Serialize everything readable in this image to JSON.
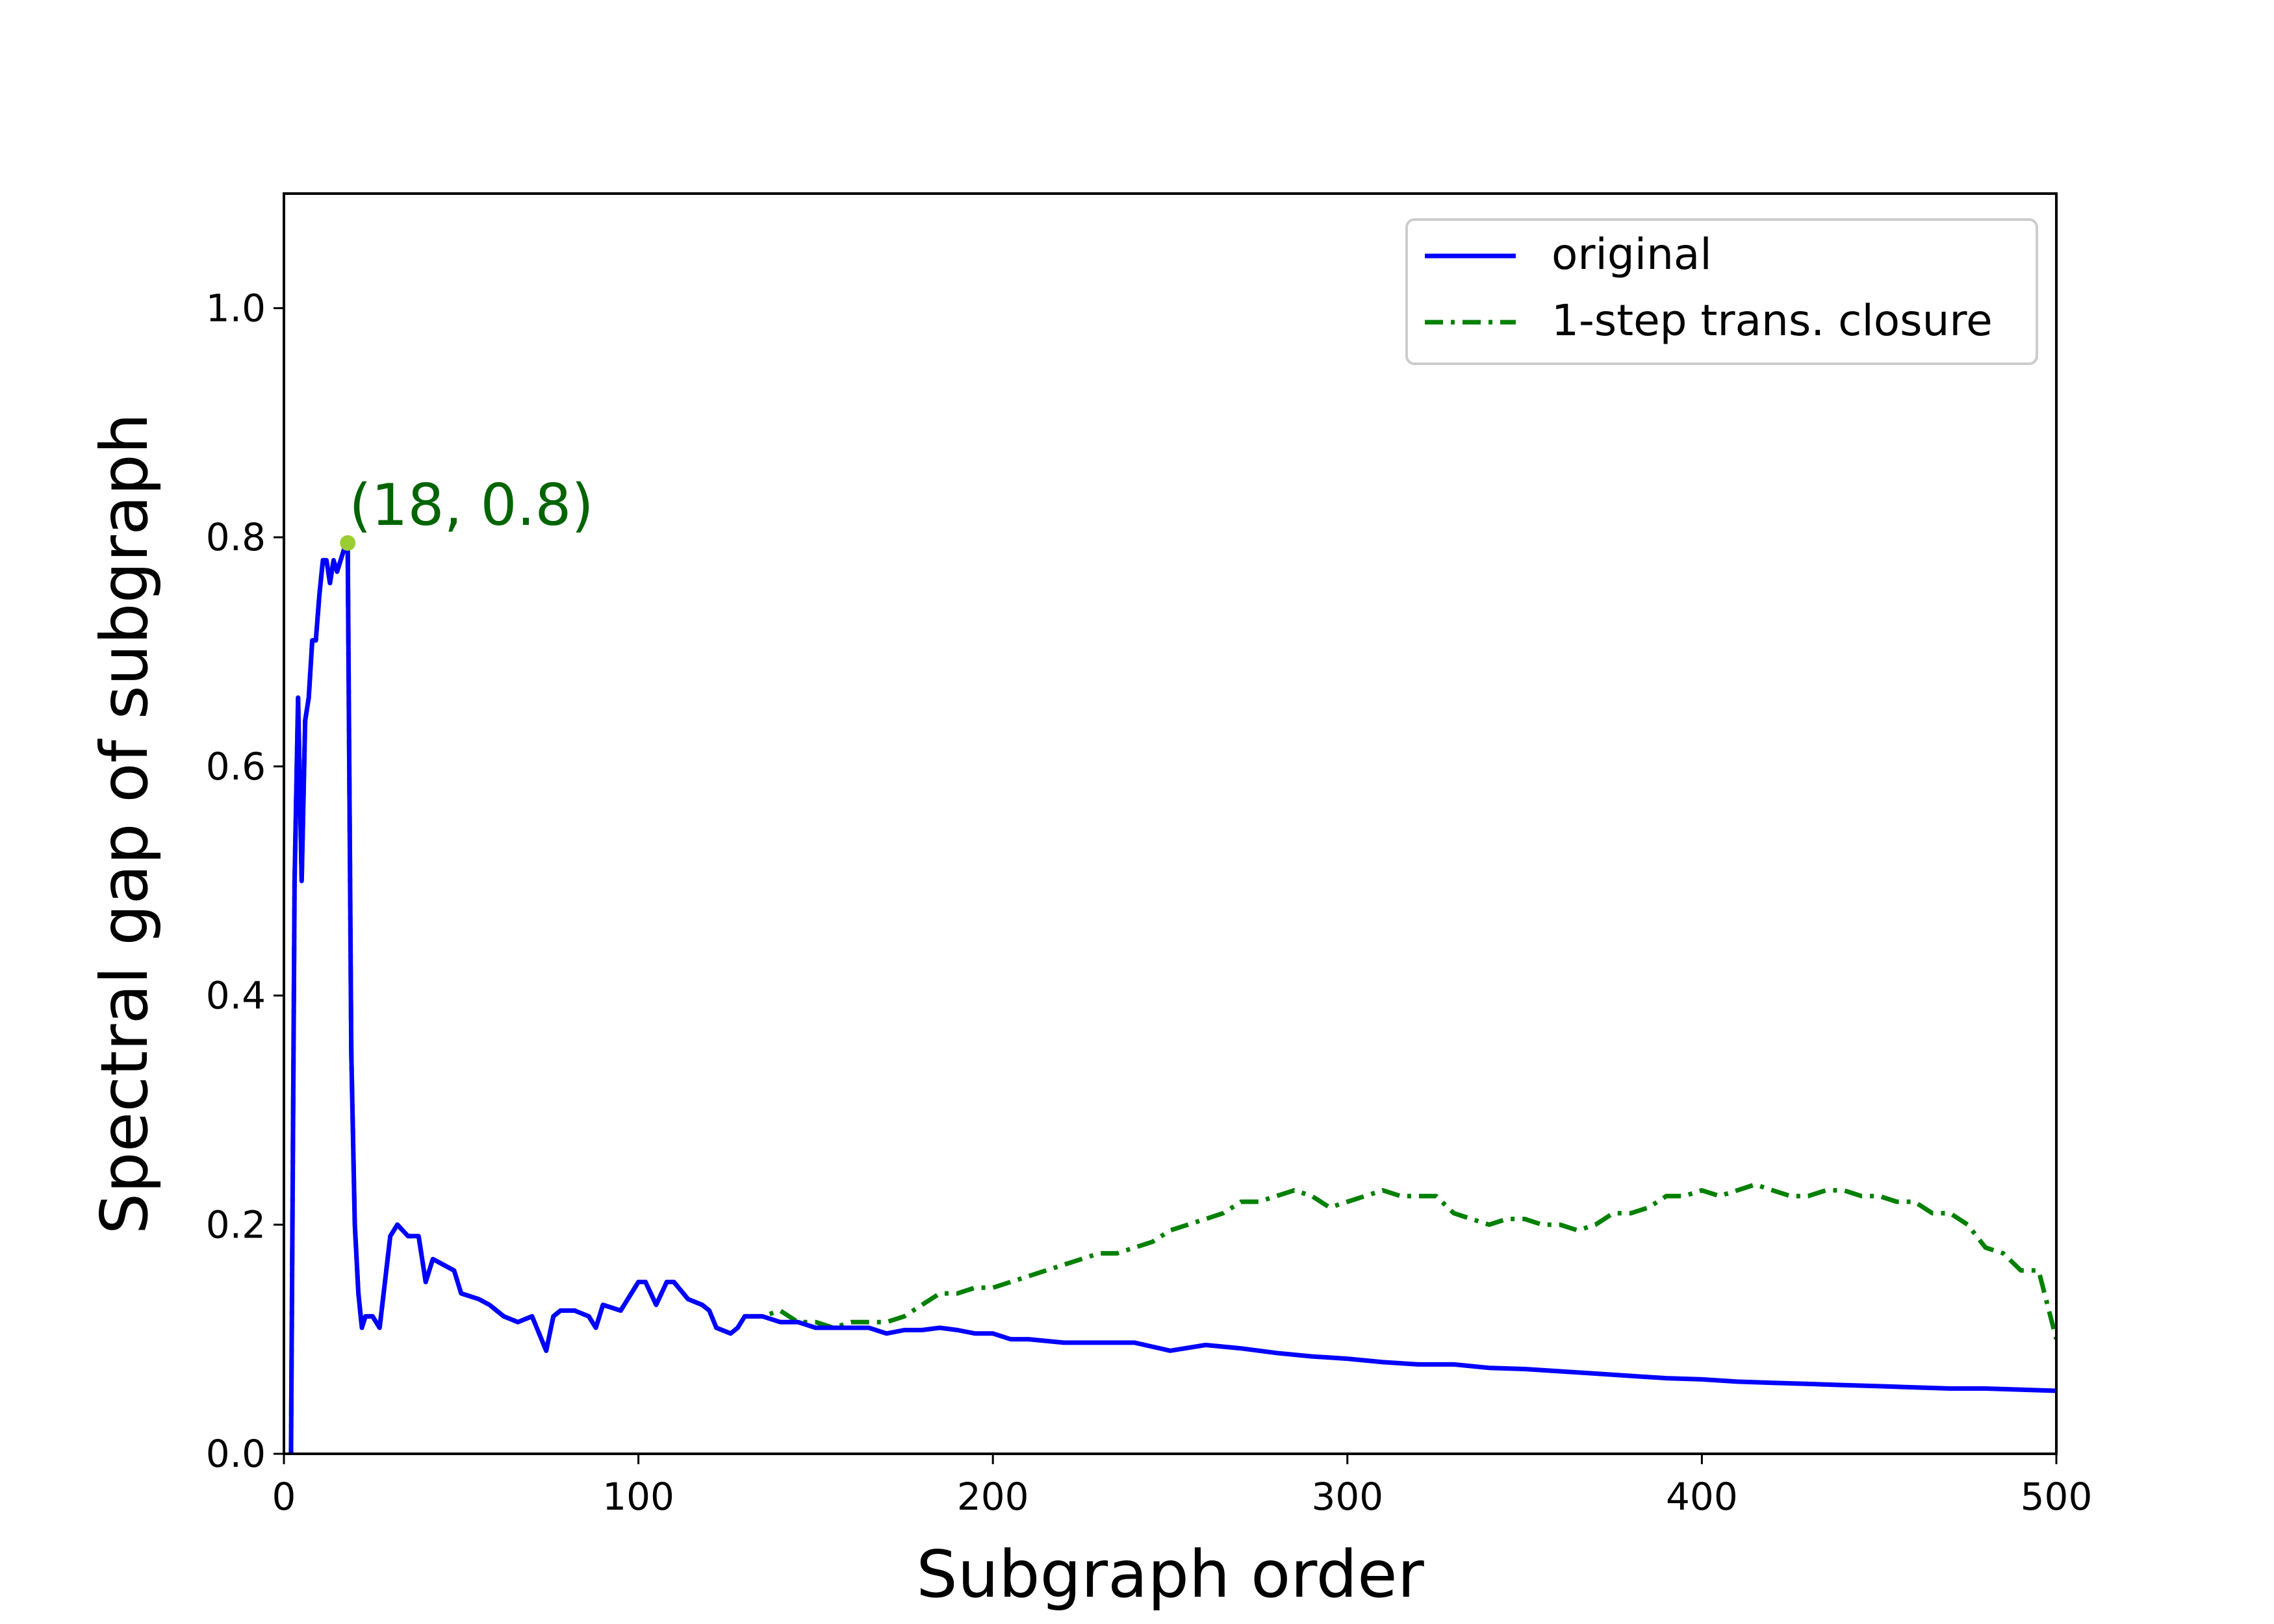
{
  "chart_data": {
    "type": "line",
    "title": "",
    "xlabel": "Subgraph order",
    "ylabel": "Spectral gap of subgraph",
    "xlim": [
      0,
      500
    ],
    "ylim": [
      0,
      1.1
    ],
    "xticks": [
      0,
      100,
      200,
      300,
      400,
      500
    ],
    "yticks": [
      0.0,
      0.2,
      0.4,
      0.6,
      0.8,
      1.0
    ],
    "xtick_labels": [
      "0",
      "100",
      "200",
      "300",
      "400",
      "500"
    ],
    "ytick_labels": [
      "0.0",
      "0.2",
      "0.4",
      "0.6",
      "0.8",
      "1.0"
    ],
    "grid": false,
    "legend_position": "top-right",
    "series": [
      {
        "name": "original",
        "color": "#0000ff",
        "style": "solid",
        "x": [
          2,
          3,
          4,
          5,
          6,
          7,
          8,
          9,
          10,
          11,
          12,
          13,
          14,
          15,
          16,
          17,
          18,
          19,
          20,
          21,
          22,
          23,
          24,
          25,
          27,
          30,
          32,
          35,
          38,
          40,
          42,
          45,
          48,
          50,
          55,
          58,
          62,
          66,
          70,
          74,
          76,
          78,
          82,
          86,
          88,
          90,
          95,
          100,
          102,
          105,
          108,
          110,
          114,
          118,
          120,
          122,
          126,
          128,
          130,
          135,
          140,
          145,
          150,
          155,
          160,
          165,
          170,
          175,
          180,
          185,
          190,
          195,
          200,
          205,
          210,
          220,
          230,
          240,
          250,
          260,
          270,
          280,
          290,
          300,
          310,
          320,
          330,
          340,
          350,
          360,
          370,
          380,
          390,
          400,
          410,
          420,
          430,
          440,
          450,
          460,
          470,
          480,
          490,
          500
        ],
        "y": [
          0.0,
          0.5,
          0.66,
          0.5,
          0.64,
          0.66,
          0.71,
          0.71,
          0.75,
          0.78,
          0.78,
          0.76,
          0.78,
          0.77,
          0.78,
          0.79,
          0.79,
          0.35,
          0.2,
          0.14,
          0.11,
          0.12,
          0.12,
          0.12,
          0.11,
          0.19,
          0.2,
          0.19,
          0.19,
          0.15,
          0.17,
          0.165,
          0.16,
          0.14,
          0.135,
          0.13,
          0.12,
          0.115,
          0.12,
          0.09,
          0.12,
          0.125,
          0.125,
          0.12,
          0.11,
          0.13,
          0.125,
          0.15,
          0.15,
          0.13,
          0.15,
          0.15,
          0.135,
          0.13,
          0.125,
          0.11,
          0.105,
          0.11,
          0.12,
          0.12,
          0.115,
          0.115,
          0.11,
          0.11,
          0.11,
          0.11,
          0.105,
          0.108,
          0.108,
          0.11,
          0.108,
          0.105,
          0.105,
          0.1,
          0.1,
          0.097,
          0.097,
          0.097,
          0.09,
          0.095,
          0.092,
          0.088,
          0.085,
          0.083,
          0.08,
          0.078,
          0.078,
          0.075,
          0.074,
          0.072,
          0.07,
          0.068,
          0.066,
          0.065,
          0.063,
          0.062,
          0.061,
          0.06,
          0.059,
          0.058,
          0.057,
          0.057,
          0.056,
          0.055
        ]
      },
      {
        "name": "1-step trans. closure",
        "color": "#008000",
        "style": "dashdot",
        "x": [
          2,
          3,
          4,
          5,
          6,
          7,
          8,
          9,
          10,
          11,
          12,
          13,
          14,
          15,
          16,
          17,
          18,
          19,
          20,
          21,
          22,
          23,
          24,
          25,
          27,
          30,
          32,
          35,
          38,
          40,
          42,
          45,
          48,
          50,
          55,
          58,
          62,
          66,
          70,
          74,
          76,
          78,
          82,
          86,
          88,
          90,
          95,
          100,
          102,
          105,
          108,
          110,
          114,
          118,
          120,
          122,
          126,
          128,
          130,
          135,
          140,
          145,
          150,
          155,
          160,
          165,
          170,
          175,
          180,
          185,
          190,
          195,
          200,
          205,
          210,
          215,
          220,
          225,
          230,
          235,
          240,
          245,
          250,
          255,
          260,
          265,
          270,
          275,
          280,
          285,
          290,
          295,
          300,
          305,
          310,
          315,
          320,
          325,
          330,
          335,
          340,
          345,
          350,
          355,
          360,
          365,
          370,
          375,
          380,
          385,
          390,
          395,
          400,
          405,
          410,
          415,
          420,
          425,
          430,
          435,
          440,
          445,
          450,
          455,
          460,
          465,
          470,
          475,
          480,
          485,
          490,
          495,
          500
        ],
        "y": [
          0.0,
          0.5,
          0.66,
          0.5,
          0.64,
          0.66,
          0.71,
          0.71,
          0.75,
          0.78,
          0.78,
          0.76,
          0.78,
          0.77,
          0.78,
          0.79,
          0.79,
          0.35,
          0.2,
          0.14,
          0.11,
          0.12,
          0.12,
          0.12,
          0.11,
          0.19,
          0.2,
          0.19,
          0.19,
          0.15,
          0.17,
          0.165,
          0.16,
          0.14,
          0.135,
          0.13,
          0.12,
          0.115,
          0.12,
          0.09,
          0.12,
          0.125,
          0.125,
          0.12,
          0.11,
          0.13,
          0.125,
          0.15,
          0.15,
          0.13,
          0.15,
          0.15,
          0.135,
          0.13,
          0.125,
          0.11,
          0.105,
          0.11,
          0.12,
          0.12,
          0.125,
          0.115,
          0.115,
          0.11,
          0.115,
          0.115,
          0.115,
          0.12,
          0.13,
          0.14,
          0.14,
          0.145,
          0.145,
          0.15,
          0.155,
          0.16,
          0.165,
          0.17,
          0.175,
          0.175,
          0.18,
          0.185,
          0.195,
          0.2,
          0.205,
          0.21,
          0.22,
          0.22,
          0.225,
          0.23,
          0.225,
          0.215,
          0.22,
          0.225,
          0.23,
          0.225,
          0.225,
          0.225,
          0.21,
          0.205,
          0.2,
          0.205,
          0.205,
          0.2,
          0.2,
          0.195,
          0.2,
          0.21,
          0.21,
          0.215,
          0.225,
          0.225,
          0.23,
          0.225,
          0.23,
          0.235,
          0.23,
          0.225,
          0.225,
          0.23,
          0.23,
          0.225,
          0.225,
          0.22,
          0.22,
          0.21,
          0.21,
          0.2,
          0.18,
          0.175,
          0.16,
          0.16,
          0.1
        ]
      }
    ],
    "annotations": [
      {
        "x": 18,
        "y": 0.795,
        "label": "(18, 0.8)",
        "marker_color": "#9acd32",
        "text_color": "#006400"
      }
    ]
  }
}
